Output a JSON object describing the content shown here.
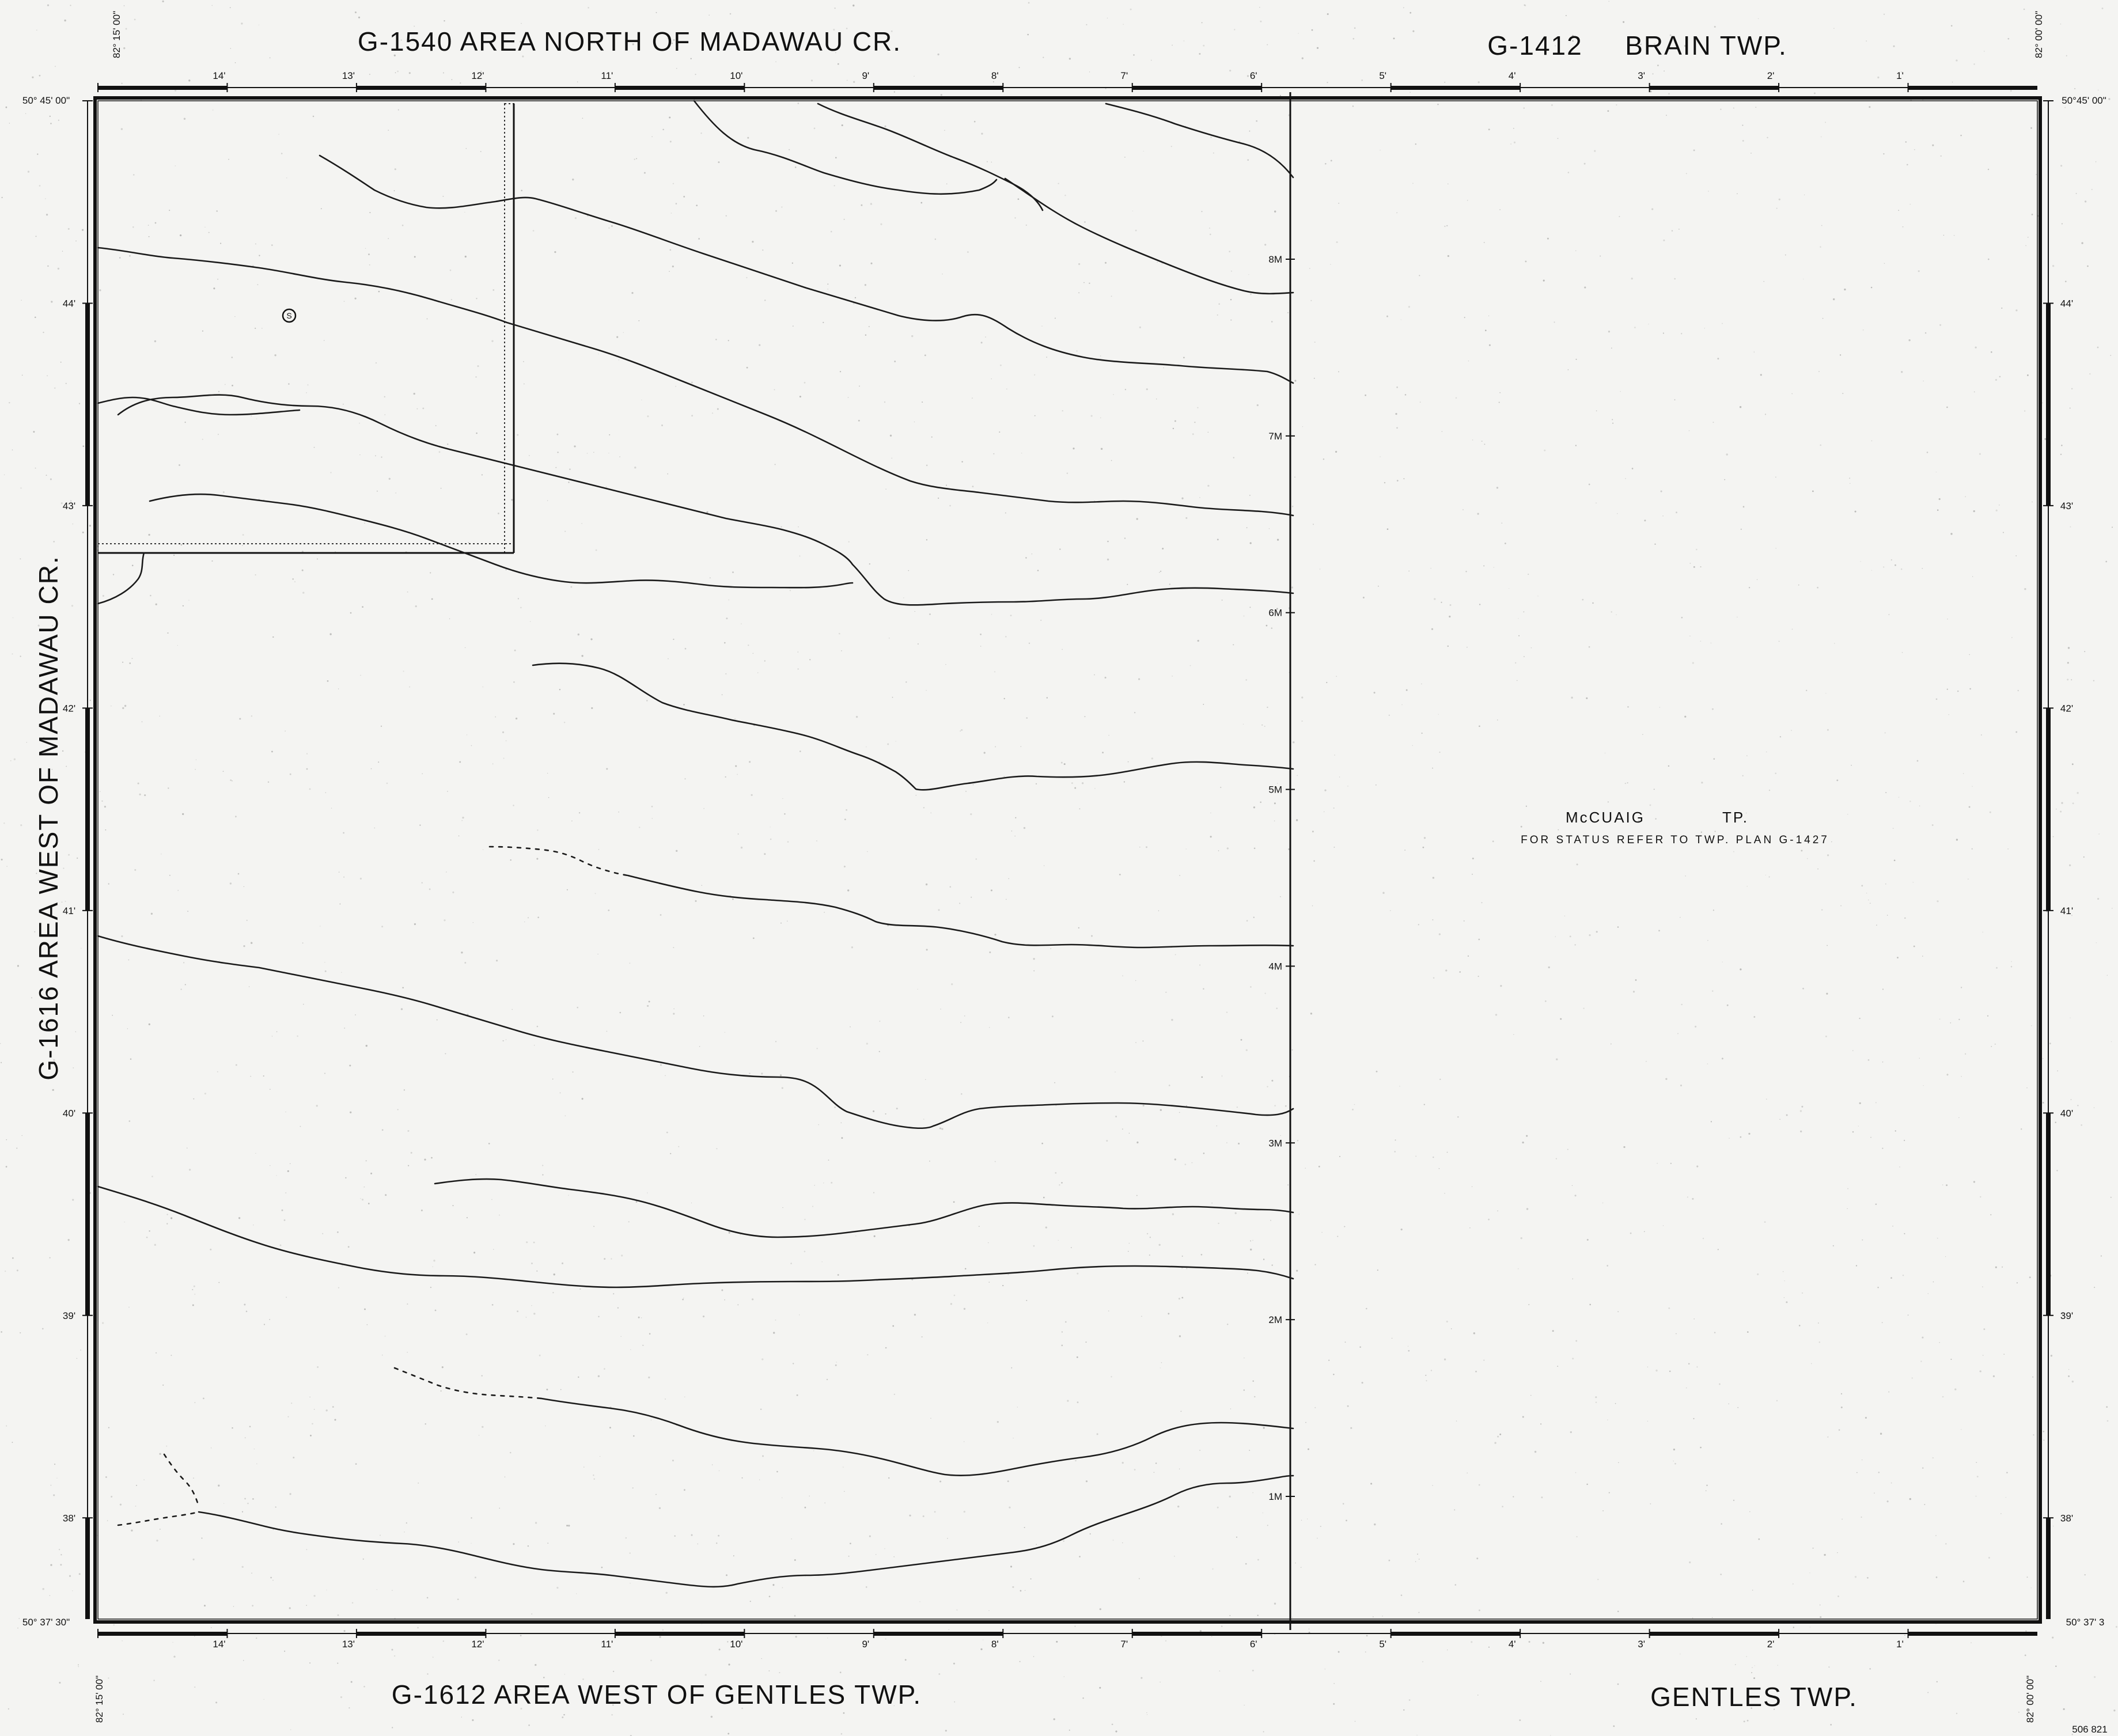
{
  "titles": {
    "top_left": "G-1540 AREA NORTH OF MADAWAU CR.",
    "top_right_code": "G-1412",
    "top_right_name": "BRAIN TWP.",
    "left_vertical": "G-1616 AREA WEST OF MADAWAU CR.",
    "bottom_left": "G-1612 AREA WEST OF GENTLES TWP.",
    "bottom_right": "GENTLES TWP."
  },
  "township": {
    "name": "McCUAIG",
    "suffix": "TP.",
    "note": "FOR STATUS REFER TO TWP. PLAN G-1427"
  },
  "corners": {
    "top_left_lon": "82° 15' 00\"",
    "top_right_lon": "82° 00' 00\"",
    "bottom_left_lon": "82° 15' 00\"",
    "bottom_right_lon": "82° 00' 00\"",
    "top_left_lat": "50° 45' 00\"",
    "top_right_lat": "50°45' 00\"",
    "bottom_left_lat": "50° 37' 30\"",
    "bottom_right_lat": "50° 37' 3"
  },
  "longitude_ticks": [
    "14'",
    "13'",
    "12'",
    "11'",
    "10'",
    "9'",
    "8'",
    "7'",
    "6'",
    "5'",
    "4'",
    "3'",
    "2'",
    "1'"
  ],
  "latitude_ticks": [
    "44'",
    "43'",
    "42'",
    "41'",
    "40'",
    "39'",
    "38'"
  ],
  "mile_markers": [
    "8M",
    "7M",
    "6M",
    "5M",
    "4M",
    "3M",
    "2M",
    "1M"
  ],
  "corner_code": "506 821",
  "map_symbol": "S",
  "map_meta": {
    "projection_axes": "longitude/latitude graticule",
    "linework_color": "#1a1a1a",
    "paper_color": "#f4f4f2"
  }
}
